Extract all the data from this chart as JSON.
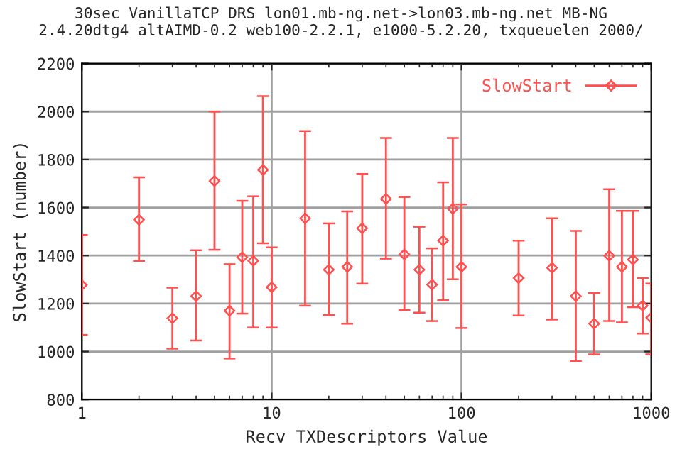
{
  "chart_data": {
    "type": "scatter",
    "title": "30sec VanillaTCP DRS lon01.mb-ng.net->lon03.mb-ng.net MB-NG\n2.4.20dtg4 altAIMD-0.2 web100-2.2.1, e1000-5.2.20, txqueuelen 2000/",
    "xlabel": "Recv TXDescriptors Value",
    "ylabel": "SlowStart (number)",
    "x": [
      1,
      2,
      3,
      4,
      5,
      6,
      7,
      8,
      9,
      10,
      15,
      20,
      25,
      30,
      40,
      50,
      60,
      70,
      80,
      90,
      100,
      200,
      300,
      400,
      500,
      600,
      700,
      800,
      900,
      1000
    ],
    "series": [
      {
        "name": "SlowStart",
        "color": "#ff4f4f",
        "values": [
          1277,
          1549,
          1139,
          1231,
          1711,
          1170,
          1393,
          1378,
          1757,
          1268,
          1555,
          1341,
          1353,
          1514,
          1636,
          1405,
          1341,
          1279,
          1462,
          1595,
          1353,
          1306,
          1349,
          1231,
          1116,
          1399,
          1353,
          1383,
          1191,
          1141
        ],
        "errors": [
          [
            1069,
            1486
          ],
          [
            1378,
            1726
          ],
          [
            1012,
            1266
          ],
          [
            1046,
            1422
          ],
          [
            1424,
            2000
          ],
          [
            971,
            1364
          ],
          [
            1158,
            1628
          ],
          [
            1100,
            1647
          ],
          [
            1451,
            2064
          ],
          [
            1100,
            1434
          ],
          [
            1191,
            1919
          ],
          [
            1152,
            1534
          ],
          [
            1116,
            1584
          ],
          [
            1283,
            1740
          ],
          [
            1387,
            1890
          ],
          [
            1173,
            1644
          ],
          [
            1162,
            1520
          ],
          [
            1127,
            1430
          ],
          [
            1214,
            1705
          ],
          [
            1301,
            1890
          ],
          [
            1098,
            1613
          ],
          [
            1150,
            1462
          ],
          [
            1133,
            1555
          ],
          [
            960,
            1503
          ],
          [
            988,
            1243
          ],
          [
            1127,
            1676
          ],
          [
            1121,
            1586
          ],
          [
            1185,
            1586
          ],
          [
            1075,
            1306
          ],
          [
            988,
            1283
          ]
        ]
      }
    ],
    "log": "x",
    "xlim": [
      1,
      1000
    ],
    "xticks": [
      1,
      10,
      100,
      1000
    ],
    "ylim": [
      800,
      2200
    ],
    "yticks": [
      800,
      1000,
      1200,
      1400,
      1600,
      1800,
      2000,
      2200
    ],
    "grid": true,
    "legend": "top right",
    "marker": "diamond"
  }
}
